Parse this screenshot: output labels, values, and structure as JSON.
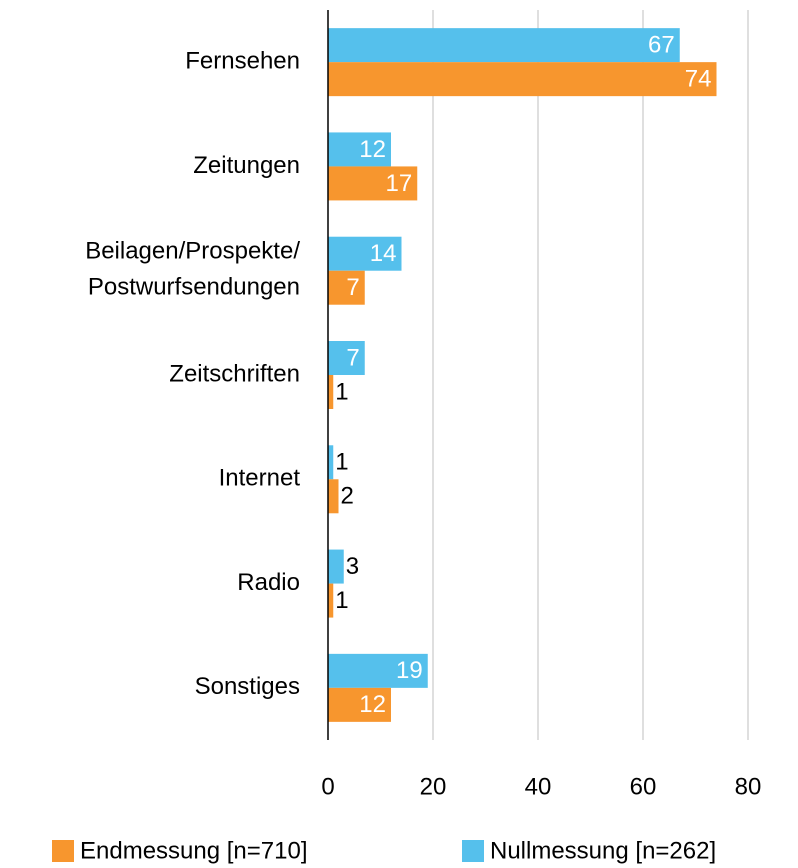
{
  "chart_data": {
    "type": "hbar",
    "categories": [
      "Fernsehen",
      "Zeitungen",
      "Beilagen/Prospekte/\nPostwurfsendungen",
      "Zeitschriften",
      "Internet",
      "Radio",
      "Sonstiges"
    ],
    "series": [
      {
        "name": "Endmessung [n=710]",
        "color": "#f7962e",
        "values": [
          74,
          17,
          7,
          1,
          2,
          1,
          12
        ]
      },
      {
        "name": "Nullmessung [n=262]",
        "color": "#55c0ec",
        "values": [
          67,
          12,
          14,
          7,
          1,
          3,
          19
        ]
      }
    ],
    "xlim": [
      0,
      80
    ],
    "xticks": [
      0,
      20,
      40,
      60,
      80
    ],
    "grid": true,
    "legend": "bottom"
  }
}
